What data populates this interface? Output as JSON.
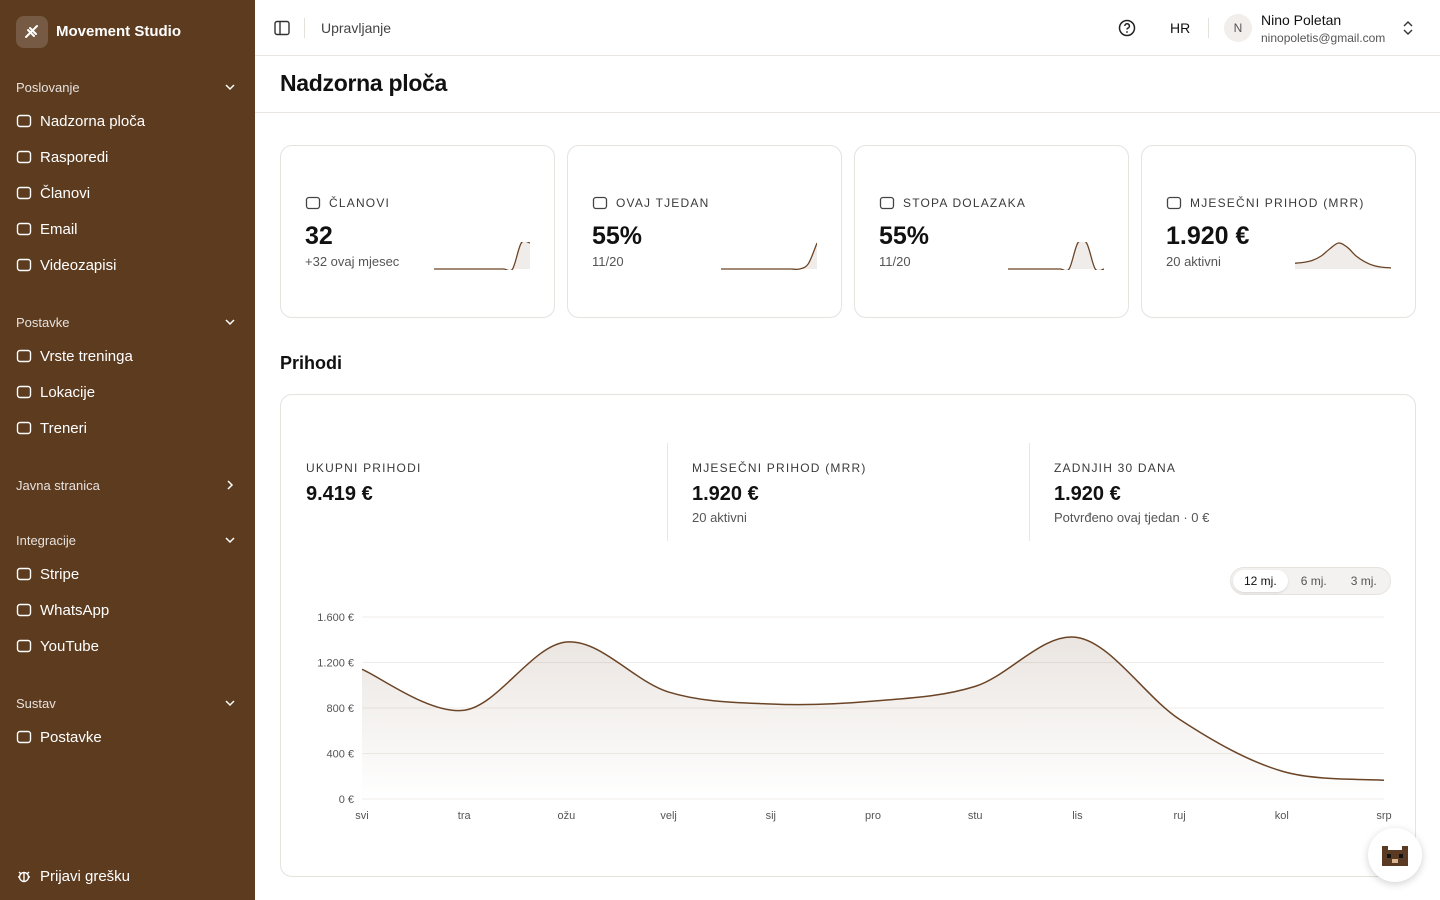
{
  "sidebar": {
    "brand": "Movement Studio",
    "sections": [
      {
        "title": "Poslovanje",
        "expanded": true,
        "items": [
          "Nadzorna ploča",
          "Rasporedi",
          "Članovi",
          "Email",
          "Videozapisi"
        ]
      },
      {
        "title": "Postavke",
        "expanded": true,
        "items": [
          "Vrste treninga",
          "Lokacije",
          "Treneri"
        ]
      },
      {
        "title": "Javna stranica",
        "expanded": false,
        "items": []
      },
      {
        "title": "Integracije",
        "expanded": true,
        "items": [
          "Stripe",
          "WhatsApp",
          "YouTube"
        ]
      },
      {
        "title": "Sustav",
        "expanded": true,
        "items": [
          "Postavke"
        ]
      }
    ],
    "footer": "Prijavi grešku"
  },
  "topbar": {
    "breadcrumb": "Upravljanje",
    "language": "HR",
    "user": {
      "initial": "N",
      "name": "Nino Poletan",
      "email": "ninopoletis@gmail.com"
    }
  },
  "page_title": "Nadzorna ploča",
  "stat_cards": [
    {
      "label": "ČLANOVI",
      "value": "32",
      "sub": "+32 ovaj mjesec",
      "sparkline": [
        0,
        0,
        0,
        0,
        0,
        0,
        0,
        0,
        0,
        0,
        10,
        10
      ]
    },
    {
      "label": "OVAJ TJEDAN",
      "value": "55%",
      "sub": "11/20",
      "sparkline": [
        0,
        0,
        0,
        0,
        0,
        0,
        0,
        0,
        0,
        0,
        2,
        10
      ]
    },
    {
      "label": "STOPA DOLAZAKA",
      "value": "55%",
      "sub": "11/20",
      "sparkline": [
        0,
        0,
        0,
        0,
        0,
        0,
        0,
        0,
        10,
        10,
        0,
        0
      ]
    },
    {
      "label": "MJESEČNI PRIHOD (MRR)",
      "value": "1.920 €",
      "sub": "20 aktivni",
      "sparkline": [
        2,
        2.3,
        3,
        4.5,
        7,
        9,
        7.5,
        4.5,
        2.5,
        1.2,
        0.6,
        0.4
      ]
    }
  ],
  "section_title": "Prihodi",
  "revenue_summary": [
    {
      "label": "UKUPNI PRIHODI",
      "value": "9.419 €"
    },
    {
      "label": "MJESEČNI PRIHOD (MRR)",
      "value": "1.920 €",
      "sub": "20 aktivni"
    },
    {
      "label": "ZADNJIH 30 DANA",
      "value": "1.920 €",
      "sub": "Potvrđeno ovaj tjedan · 0 €"
    }
  ],
  "range_options": [
    "12 mj.",
    "6 mj.",
    "3 mj."
  ],
  "range_selected": 0,
  "chart_data": {
    "type": "line",
    "categories": [
      "svi",
      "tra",
      "ožu",
      "velj",
      "sij",
      "pro",
      "stu",
      "lis",
      "ruj",
      "kol",
      "srp"
    ],
    "values": [
      1140,
      780,
      1380,
      940,
      835,
      860,
      990,
      1420,
      700,
      245,
      165
    ],
    "color": "#6b4426",
    "ylim": [
      0,
      1600
    ],
    "yticks": [
      {
        "value": 0,
        "label": "0 €"
      },
      {
        "value": 400,
        "label": "400 €"
      },
      {
        "value": 800,
        "label": "800 €"
      },
      {
        "value": 1200,
        "label": "1.200 €"
      },
      {
        "value": 1600,
        "label": "1.600 €"
      }
    ],
    "grid": true
  }
}
